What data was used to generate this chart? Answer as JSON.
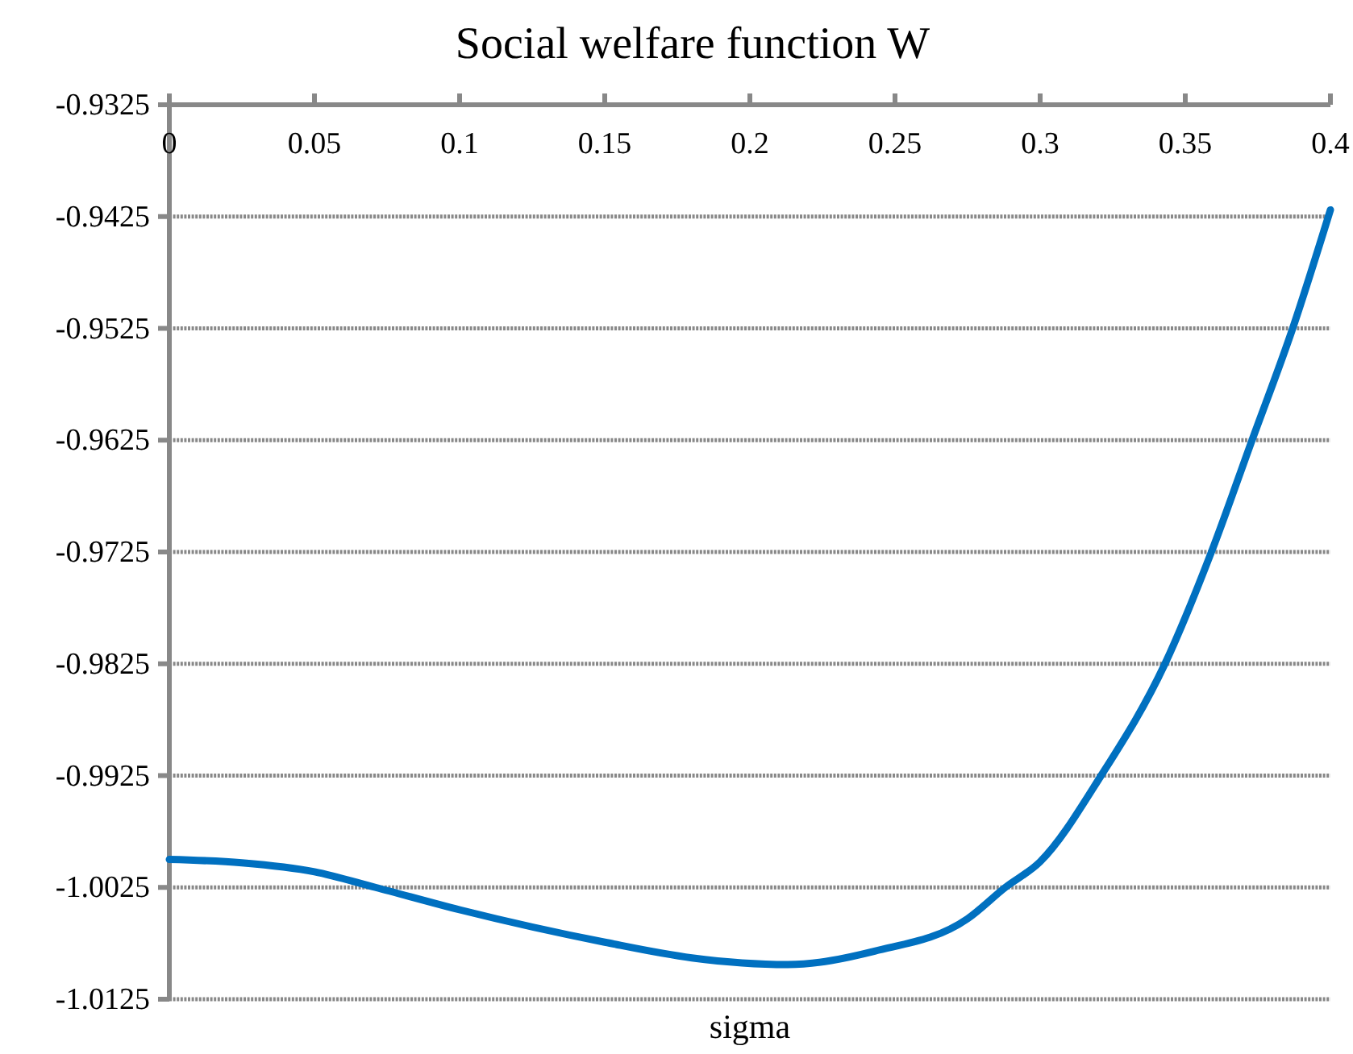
{
  "chart_data": {
    "type": "line",
    "title": "Social welfare function W",
    "xlabel": "sigma",
    "x": [
      0,
      0.025,
      0.05,
      0.071,
      0.1,
      0.15,
      0.18,
      0.213,
      0.243,
      0.275,
      0.288,
      0.3,
      0.321,
      0.343,
      0.359,
      0.373,
      0.387,
      0.4
    ],
    "series": [
      {
        "color": "#0070c0",
        "values": [
          -1.0,
          -1.0003,
          -1.0011,
          -1.0025,
          -1.0045,
          -1.0074,
          -1.0088,
          -1.0094,
          -1.0082,
          -1.0053,
          -1.0025,
          -1.0002,
          -0.9925,
          -0.9825,
          -0.9725,
          -0.9625,
          -0.9525,
          -0.9419
        ]
      }
    ],
    "xlim": [
      0,
      0.4
    ],
    "xticks": [
      0,
      0.05,
      0.1,
      0.15,
      0.2,
      0.25,
      0.3,
      0.35,
      0.4
    ],
    "ylim": [
      -1.0125,
      -0.9325
    ],
    "yticks": [
      -1.0125,
      -1.0025,
      -0.9925,
      -0.9825,
      -0.9725,
      -0.9625,
      -0.9525,
      -0.9425,
      -0.9325
    ],
    "grid": "y",
    "marker": "none",
    "line_style": "solid"
  }
}
